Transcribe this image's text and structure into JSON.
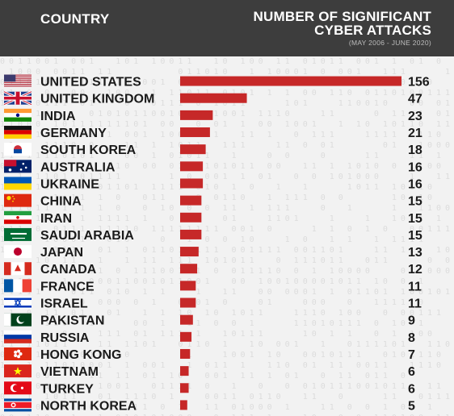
{
  "header": {
    "country_label": "COUNTRY",
    "metric_line1": "NUMBER OF SIGNIFICANT",
    "metric_line2": "CYBER ATTACKS",
    "date_range": "(MAY 2006 - JUNE 2020)"
  },
  "colors": {
    "header_bg": "#3d3d3d",
    "bar": "#c62828",
    "text": "#1a1a1a",
    "background": "#f2f2f2"
  },
  "chart_data": {
    "type": "bar",
    "orientation": "horizontal",
    "categories": [
      "UNITED STATES",
      "UNITED KINGDOM",
      "INDIA",
      "GERMANY",
      "SOUTH KOREA",
      "AUSTRALIA",
      "UKRAINE",
      "CHINA",
      "IRAN",
      "SAUDI ARABIA",
      "JAPAN",
      "CANADA",
      "FRANCE",
      "ISRAEL",
      "PAKISTAN",
      "RUSSIA",
      "HONG KONG",
      "VIETNAM",
      "TURKEY",
      "NORTH KOREA"
    ],
    "values": [
      156,
      47,
      23,
      21,
      18,
      16,
      16,
      15,
      15,
      15,
      13,
      12,
      11,
      11,
      9,
      8,
      7,
      6,
      6,
      5
    ],
    "flags": [
      "us-flag",
      "uk-flag",
      "india-flag",
      "germany-flag",
      "south-korea-flag",
      "australia-flag",
      "ukraine-flag",
      "china-flag",
      "iran-flag",
      "saudi-arabia-flag",
      "japan-flag",
      "canada-flag",
      "france-flag",
      "israel-flag",
      "pakistan-flag",
      "russia-flag",
      "hong-kong-flag",
      "vietnam-flag",
      "turkey-flag",
      "north-korea-flag"
    ],
    "title": "NUMBER OF SIGNIFICANT CYBER ATTACKS",
    "xlim": [
      0,
      156
    ]
  }
}
